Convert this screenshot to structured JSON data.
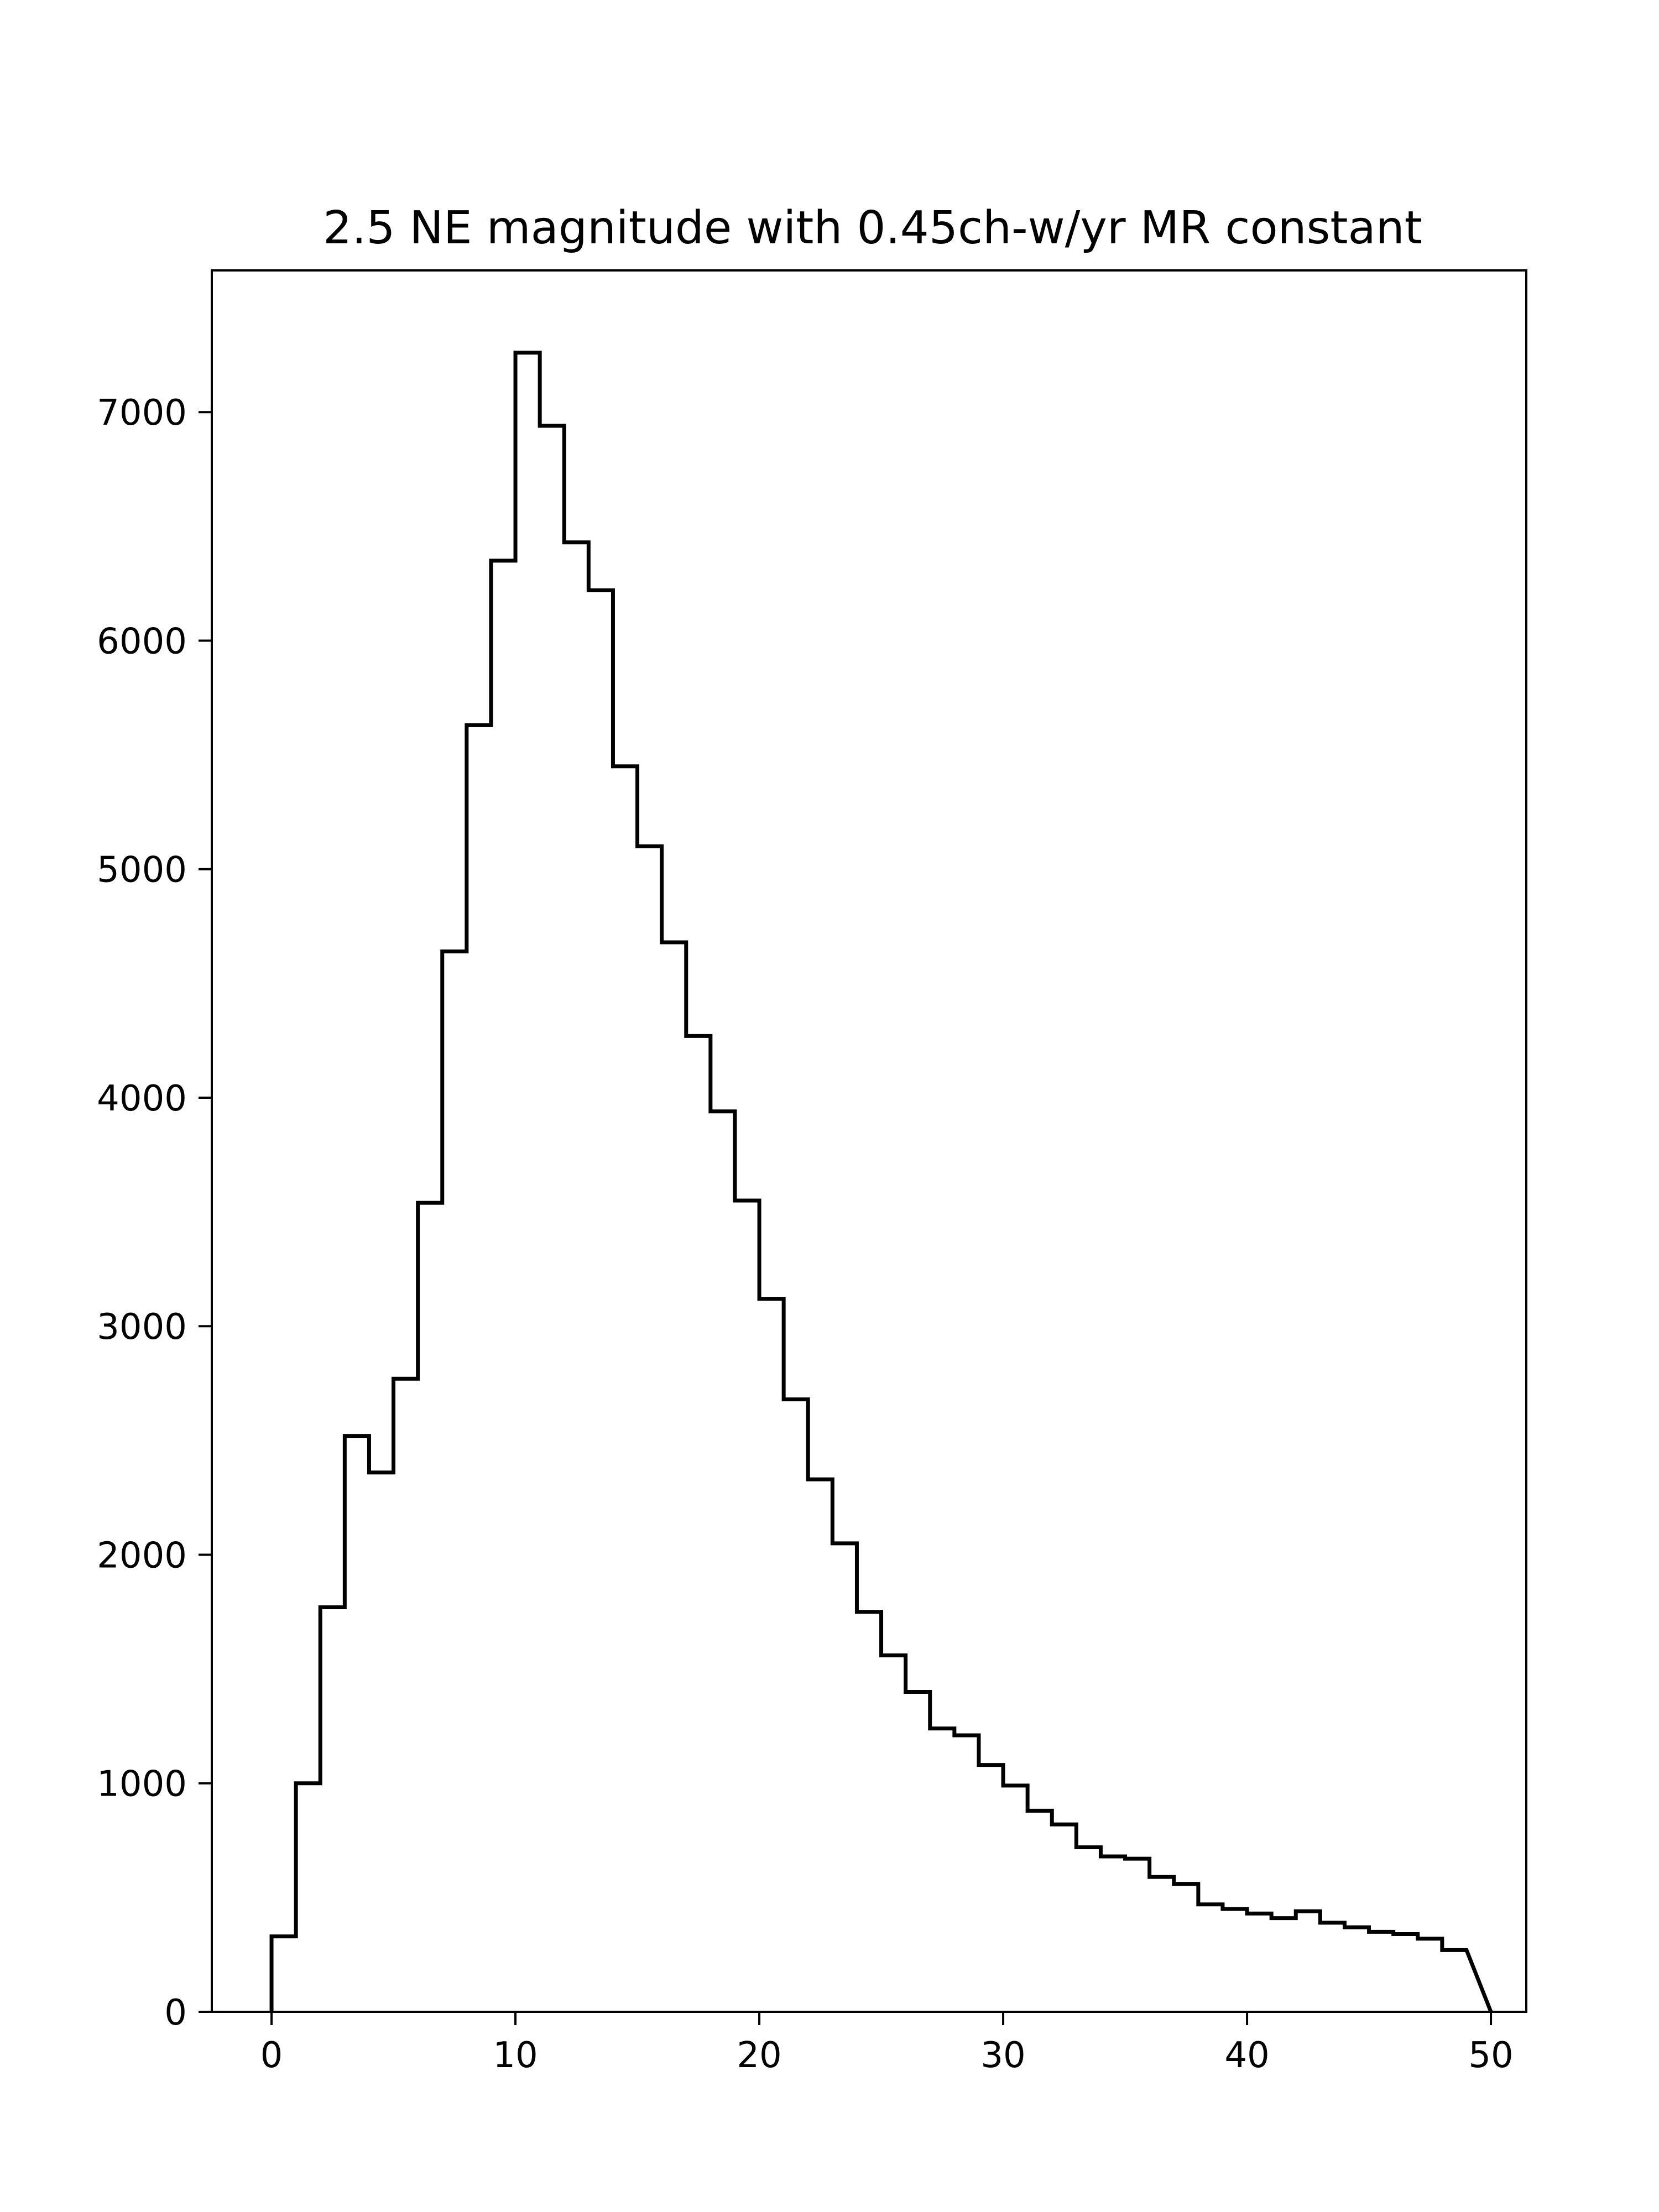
{
  "chart_data": {
    "type": "histogram",
    "title": "2.5 NE magnitude with 0.45ch-w/yr MR constant",
    "xlabel": "",
    "ylabel": "",
    "xlim": [
      -2.45,
      51.45
    ],
    "ylim": [
      0,
      7620
    ],
    "xticks": [
      0,
      10,
      20,
      30,
      40,
      50
    ],
    "yticks": [
      0,
      1000,
      2000,
      3000,
      4000,
      5000,
      6000,
      7000
    ],
    "grid": false,
    "legend": "none",
    "histtype": "step",
    "line_color": "#000000",
    "bin_edges": [
      0,
      1,
      2,
      3,
      4,
      5,
      6,
      7,
      8,
      9,
      10,
      11,
      12,
      13,
      14,
      15,
      16,
      17,
      18,
      19,
      20,
      21,
      22,
      23,
      24,
      25,
      26,
      27,
      28,
      29,
      30,
      31,
      32,
      33,
      34,
      35,
      36,
      37,
      38,
      39,
      40,
      41,
      42,
      43,
      44,
      45,
      46,
      47,
      48,
      49
    ],
    "counts": [
      330,
      1000,
      1770,
      2520,
      2360,
      2770,
      3540,
      4640,
      5630,
      6350,
      7260,
      6940,
      6430,
      6220,
      5450,
      5100,
      4680,
      4270,
      3940,
      3550,
      3120,
      2680,
      2330,
      2050,
      1750,
      1560,
      1400,
      1240,
      1210,
      1080,
      990,
      880,
      820,
      720,
      680,
      670,
      590,
      560,
      470,
      450,
      430,
      410,
      440,
      390,
      370,
      350,
      340,
      320,
      270
    ]
  }
}
